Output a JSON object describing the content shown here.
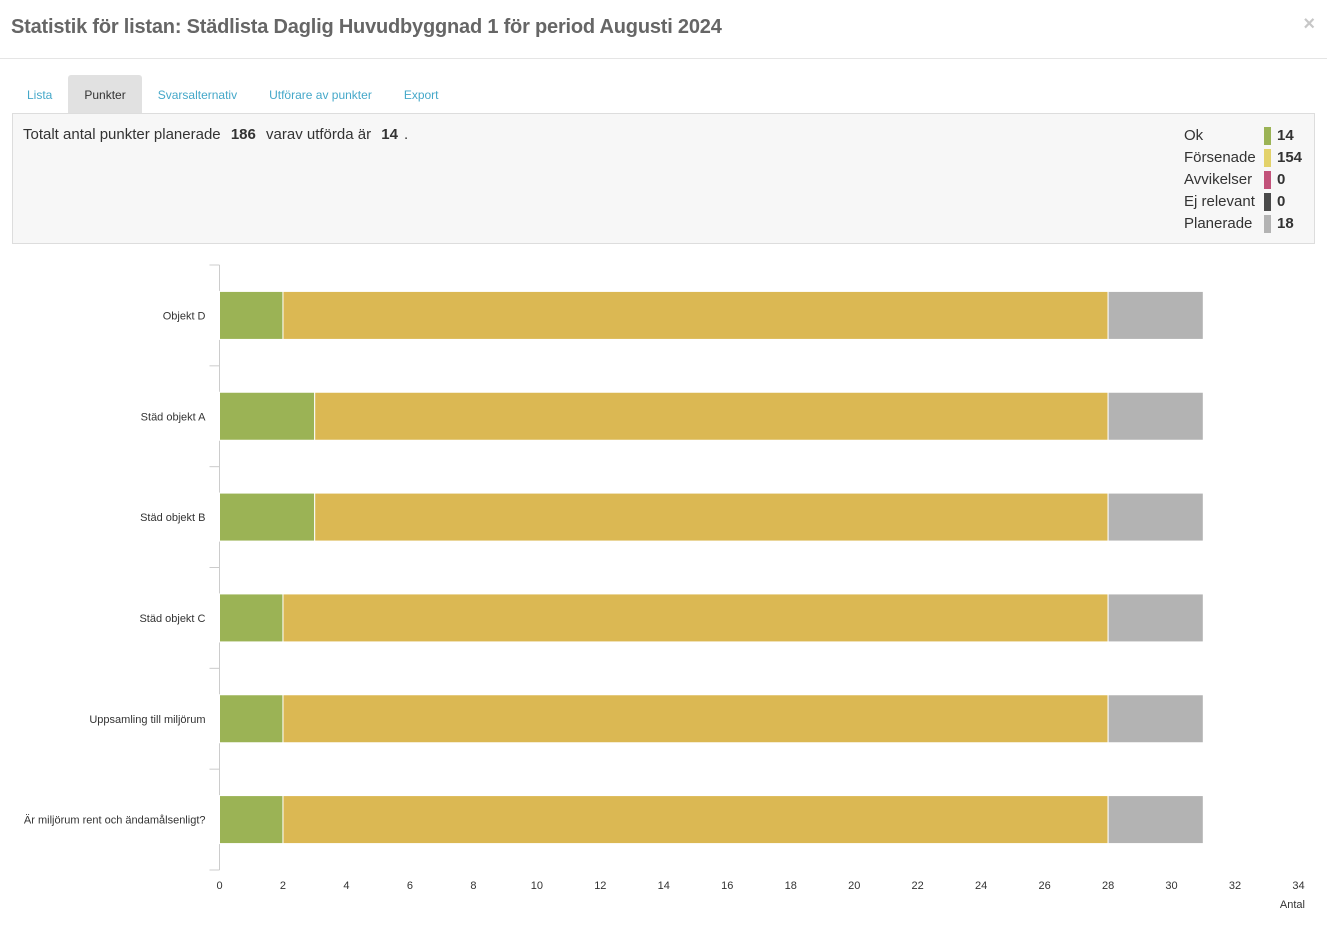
{
  "dialog": {
    "title": "Statistik för listan: Städlista Daglig Huvudbyggnad 1 för period Augusti 2024",
    "close_label": "×"
  },
  "tabs": [
    {
      "label": "Lista",
      "active": false
    },
    {
      "label": "Punkter",
      "active": true
    },
    {
      "label": "Svarsalternativ",
      "active": false
    },
    {
      "label": "Utförare av punkter",
      "active": false
    },
    {
      "label": "Export",
      "active": false
    }
  ],
  "summary": {
    "prefix": "Totalt antal punkter planerade",
    "planned_total": "186",
    "middle": "varav utförda är",
    "done_total": "14",
    "suffix": "."
  },
  "legend": [
    {
      "label": "Ok",
      "value": "14",
      "color": "#9bb355"
    },
    {
      "label": "Försenade",
      "value": "154",
      "color": "#e3d26a"
    },
    {
      "label": "Avvikelser",
      "value": "0",
      "color": "#c2527a"
    },
    {
      "label": "Ej relevant",
      "value": "0",
      "color": "#4a4a4a"
    },
    {
      "label": "Planerade",
      "value": "18",
      "color": "#b3b3b3"
    }
  ],
  "chart_data": {
    "type": "bar",
    "orientation": "horizontal",
    "stacked": true,
    "categories": [
      "Objekt D",
      "Städ objekt A",
      "Städ objekt B",
      "Städ objekt C",
      "Uppsamling till miljörum",
      "Är miljörum rent och ändamålsenligt?"
    ],
    "series": [
      {
        "name": "Ok",
        "color": "#9bb355",
        "values": [
          2,
          3,
          3,
          2,
          2,
          2
        ]
      },
      {
        "name": "Försenade",
        "color": "#dbb853",
        "values": [
          26,
          25,
          25,
          26,
          26,
          26
        ]
      },
      {
        "name": "Planerade",
        "color": "#b3b3b3",
        "values": [
          3,
          3,
          3,
          3,
          3,
          3
        ]
      }
    ],
    "xlim": [
      0,
      34
    ],
    "xticks": [
      "0",
      "2",
      "4",
      "6",
      "8",
      "10",
      "12",
      "14",
      "16",
      "18",
      "20",
      "22",
      "24",
      "26",
      "28",
      "30",
      "32",
      "34"
    ],
    "xlabel": "Antal",
    "grid": false
  }
}
